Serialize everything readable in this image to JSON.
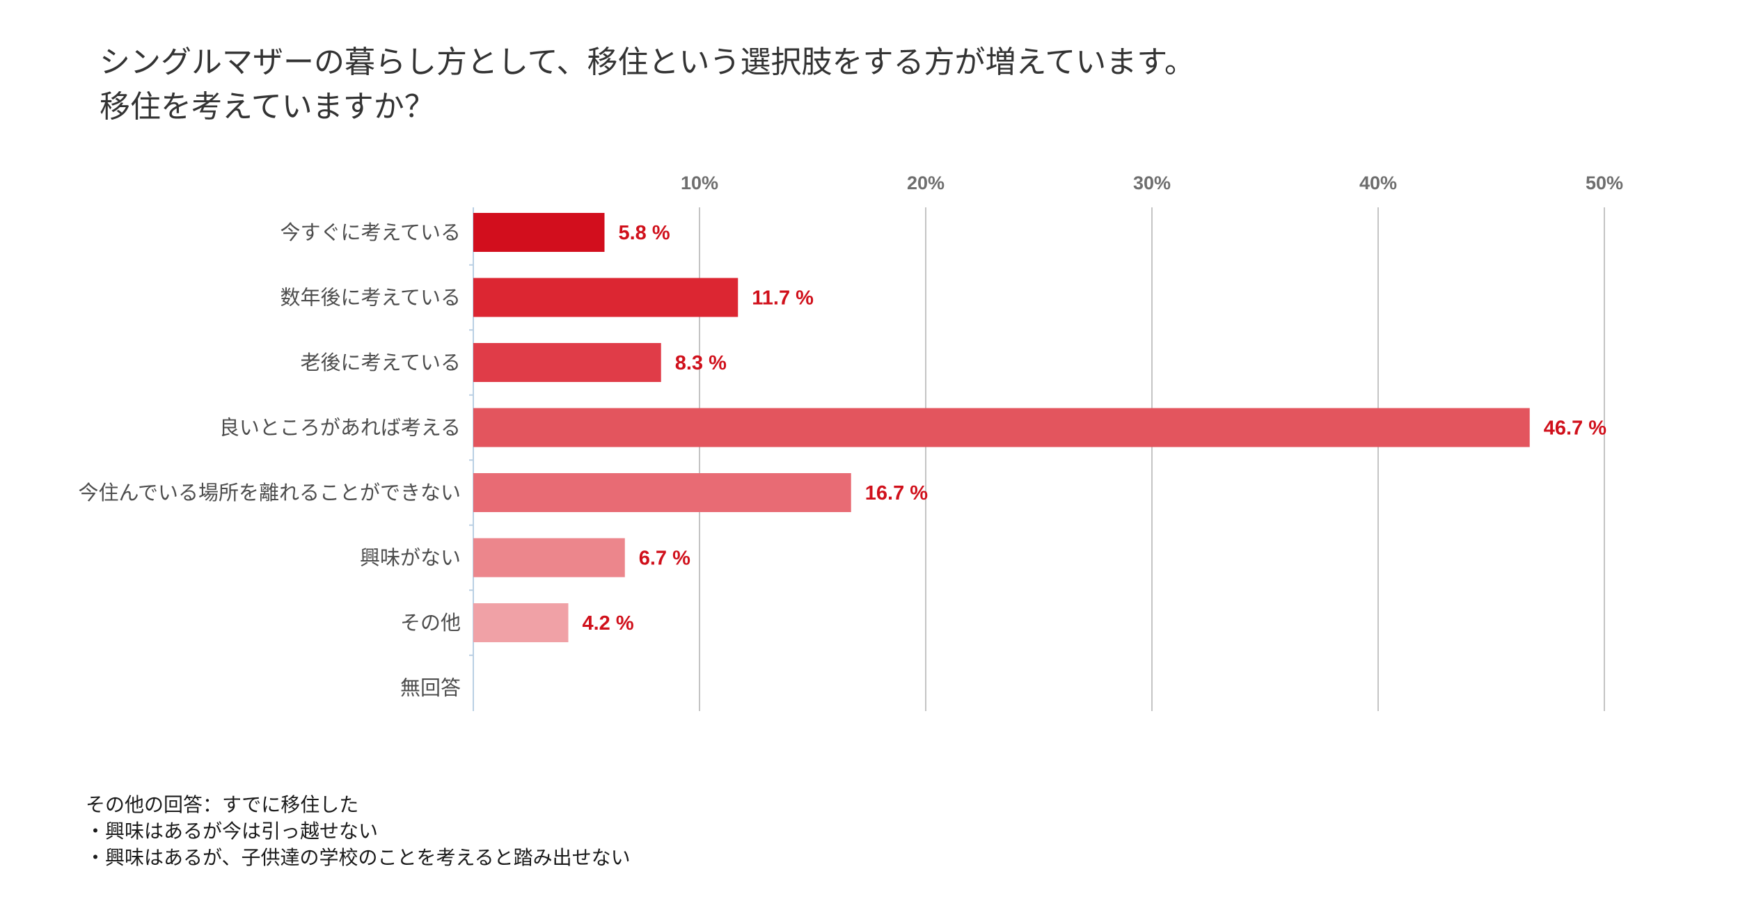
{
  "chart_data": {
    "type": "bar",
    "orientation": "horizontal",
    "title_lines": [
      "シングルマザーの暮らし方として、移住という選択肢をする方が増えています。",
      "移住を考えていますか？"
    ],
    "categories": [
      "今すぐに考えている",
      "数年後に考えている",
      "老後に考えている",
      "良いところがあれば考える",
      "今住んでいる場所を離れることができない",
      "興味がない",
      "その他",
      "無回答"
    ],
    "values": [
      5.8,
      11.7,
      8.3,
      46.7,
      16.7,
      6.7,
      4.2,
      null
    ],
    "value_labels": [
      "5.8 %",
      "11.7 %",
      "8.3 %",
      "46.7 %",
      "16.7 %",
      "6.7 %",
      "4.2 %",
      ""
    ],
    "bar_colors": [
      "#d20e1d",
      "#dc2632",
      "#e03c48",
      "#e3555e",
      "#e86b74",
      "#ec868c",
      "#f0a1a6",
      "#f5bcc0"
    ],
    "value_label_color": "#d0101b",
    "xlim": [
      0,
      50
    ],
    "xticks": [
      10,
      20,
      30,
      40,
      50
    ],
    "xtick_labels": [
      "10%",
      "20%",
      "30%",
      "40%",
      "50%"
    ],
    "tick_position": "top",
    "grid": true,
    "legend": "none"
  },
  "notes": [
    "その他の回答：すでに移住した",
    "・興味はあるが今は引っ越せない",
    "・興味はあるが、子供達の学校のことを考えると踏み出せない"
  ]
}
